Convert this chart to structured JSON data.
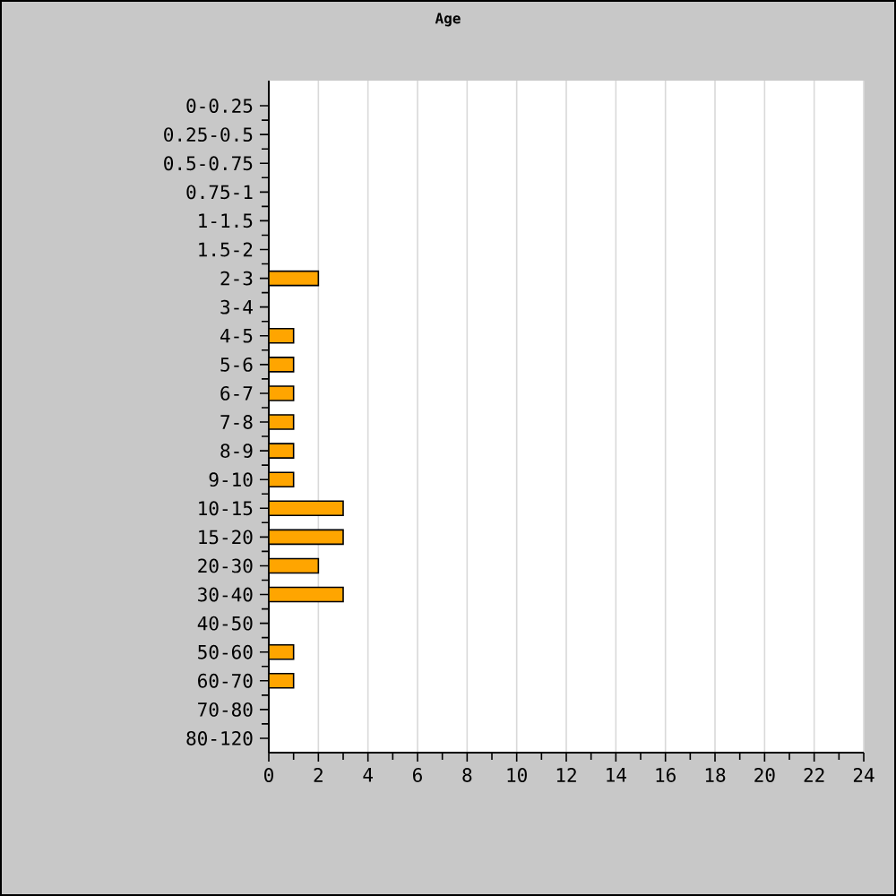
{
  "chart_data": {
    "type": "bar",
    "orientation": "horizontal",
    "title": "Age",
    "categories": [
      "0-0.25",
      "0.25-0.5",
      "0.5-0.75",
      "0.75-1",
      "1-1.5",
      "1.5-2",
      "2-3",
      "3-4",
      "4-5",
      "5-6",
      "6-7",
      "7-8",
      "8-9",
      "9-10",
      "10-15",
      "15-20",
      "20-30",
      "30-40",
      "40-50",
      "50-60",
      "60-70",
      "70-80",
      "80-120"
    ],
    "values": [
      0,
      0,
      0,
      0,
      0,
      0,
      2,
      0,
      1,
      1,
      1,
      1,
      1,
      1,
      3,
      3,
      2,
      3,
      0,
      1,
      1,
      0,
      0
    ],
    "color": "#ffa500",
    "xlim": [
      0,
      24
    ],
    "xticks": [
      0,
      2,
      4,
      6,
      8,
      10,
      12,
      14,
      16,
      18,
      20,
      22,
      24
    ],
    "grid": "x"
  }
}
